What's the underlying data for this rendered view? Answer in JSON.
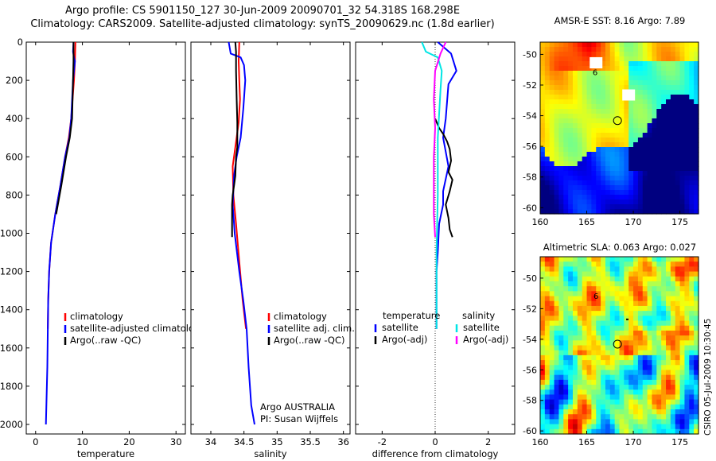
{
  "titles": {
    "line1": "Argo profile: CS 5901150_127 30-Jun-2009 20090701_32 54.318S 168.298E",
    "line2": "Climatology: CARS2009. Satellite-adjusted climatology: synTS_20090629.nc (1.8d earlier)"
  },
  "credit": "CSIRO 05-Jul-2009 10:30:45",
  "colors": {
    "climatology": "#ff0000",
    "satellite": "#0000ff",
    "argo": "#000000",
    "salinity_satellite": "#00e5e5",
    "salinity_argo": "#ff00ff"
  },
  "chart_data": [
    {
      "type": "line",
      "id": "temperature",
      "xlabel": "temperature",
      "ylabel": "",
      "xlim": [
        -2,
        32
      ],
      "ylim": [
        2050,
        0
      ],
      "xticks": [
        0,
        10,
        20,
        30
      ],
      "yticks": [
        0,
        200,
        400,
        600,
        800,
        1000,
        1200,
        1400,
        1600,
        1800,
        2000
      ],
      "legend": [
        "climatology",
        "satellite-adjusted climatology",
        "Argo(..raw -QC)"
      ],
      "legend_position": "lower-right",
      "series": [
        {
          "name": "climatology",
          "color": "#ff0000",
          "x": [
            8.5,
            8.4,
            8.2,
            7.9,
            7.6,
            7.1,
            6.3,
            5.3,
            4.2,
            3.3,
            2.9,
            2.7,
            2.6
          ],
          "y": [
            0,
            100,
            200,
            300,
            400,
            500,
            600,
            750,
            900,
            1050,
            1200,
            1350,
            1500
          ]
        },
        {
          "name": "satellite-adjusted climatology",
          "color": "#0000ff",
          "x": [
            8.1,
            8.0,
            8.2,
            8.4,
            8.0,
            7.6,
            7.2,
            6.3,
            5.3,
            4.2,
            3.3,
            2.9,
            2.7,
            2.6,
            2.5,
            2.3,
            2.2
          ],
          "y": [
            0,
            50,
            80,
            100,
            200,
            400,
            500,
            600,
            750,
            900,
            1050,
            1200,
            1350,
            1500,
            1700,
            1900,
            2000
          ]
        },
        {
          "name": "Argo(..raw -QC)",
          "color": "#000000",
          "x": [
            8.1,
            8.1,
            8.0,
            7.9,
            7.8,
            7.3,
            6.5,
            5.5,
            4.4
          ],
          "y": [
            0,
            100,
            200,
            300,
            400,
            500,
            600,
            750,
            900
          ]
        }
      ]
    },
    {
      "type": "line",
      "id": "salinity",
      "xlabel": "salinity",
      "xlim": [
        33.7,
        36.1
      ],
      "ylim": [
        2050,
        0
      ],
      "xticks": [
        34,
        34.5,
        35,
        35.5,
        36
      ],
      "yticks": [
        0,
        200,
        400,
        600,
        800,
        1000,
        1200,
        1400,
        1600,
        1800,
        2000
      ],
      "legend": [
        "climatology",
        "satellite adj. clim.",
        "Argo(..raw -QC)"
      ],
      "legend_position": "lower-right",
      "annotation": [
        "Argo AUSTRALIA",
        "PI: Susan Wijffels"
      ],
      "series": [
        {
          "name": "climatology",
          "color": "#ff0000",
          "x": [
            34.43,
            34.42,
            34.43,
            34.44,
            34.42,
            34.37,
            34.33,
            34.34,
            34.38,
            34.43,
            34.48,
            34.53
          ],
          "y": [
            0,
            100,
            200,
            300,
            420,
            550,
            650,
            800,
            950,
            1150,
            1350,
            1500
          ]
        },
        {
          "name": "satellite adj. clim.",
          "color": "#0000ff",
          "x": [
            34.27,
            34.3,
            34.45,
            34.5,
            34.52,
            34.49,
            34.45,
            34.39,
            34.35,
            34.33,
            34.36,
            34.43,
            34.49,
            34.54,
            34.57,
            34.61,
            34.66
          ],
          "y": [
            0,
            60,
            80,
            120,
            200,
            350,
            500,
            600,
            700,
            850,
            1000,
            1200,
            1350,
            1500,
            1700,
            1900,
            2000
          ]
        },
        {
          "name": "Argo(..raw -QC)",
          "color": "#000000",
          "x": [
            34.37,
            34.38,
            34.38,
            34.39,
            34.4,
            34.4,
            34.38,
            34.37,
            34.35,
            34.33,
            34.32,
            34.32,
            34.32
          ],
          "y": [
            0,
            50,
            150,
            300,
            420,
            550,
            600,
            700,
            750,
            800,
            850,
            900,
            1020
          ]
        }
      ]
    },
    {
      "type": "line",
      "id": "difference",
      "xlabel": "difference from climatology",
      "xlim": [
        -3,
        3
      ],
      "ylim": [
        2050,
        0
      ],
      "xticks": [
        -2,
        0,
        2
      ],
      "yticks": [
        0,
        200,
        400,
        600,
        800,
        1000,
        1200,
        1400,
        1600,
        1800,
        2000
      ],
      "legend_left_heading": "temperature",
      "legend_right_heading": "salinity",
      "legend": [
        "satellite",
        "Argo(-adj)",
        "satellite",
        "Argo(-adj)"
      ],
      "legend_position": "lower-center",
      "series": [
        {
          "name": "satellite",
          "group": "temperature",
          "color": "#0000ff",
          "x": [
            0.1,
            0.6,
            0.8,
            0.5,
            0.4,
            0.3,
            0.5,
            0.3,
            0.3,
            0.15,
            0.1,
            0.05,
            0.05,
            0.05,
            0.05
          ],
          "y": [
            0,
            60,
            150,
            220,
            400,
            500,
            650,
            780,
            850,
            950,
            1100,
            1200,
            1300,
            1400,
            1500
          ]
        },
        {
          "name": "Argo(-adj)",
          "group": "temperature",
          "color": "#000000",
          "x": [
            0.0,
            0.15,
            0.3,
            0.45,
            0.55,
            0.6,
            0.5,
            0.65,
            0.55,
            0.4,
            0.5,
            0.55,
            0.65
          ],
          "y": [
            400,
            450,
            480,
            520,
            560,
            620,
            680,
            720,
            780,
            850,
            920,
            980,
            1020
          ]
        },
        {
          "name": "satellite",
          "group": "salinity",
          "color": "#00e5e5",
          "x": [
            -0.5,
            -0.35,
            0.1,
            0.25,
            0.2,
            0.1,
            0.1,
            0.05,
            0.05,
            0.05
          ],
          "y": [
            0,
            50,
            80,
            150,
            250,
            500,
            800,
            1100,
            1300,
            1500
          ]
        },
        {
          "name": "Argo(-adj)",
          "group": "salinity",
          "color": "#ff00ff",
          "x": [
            0.4,
            0.2,
            0.0,
            -0.05,
            0.0,
            -0.05,
            -0.05,
            -0.05,
            0.0
          ],
          "y": [
            0,
            60,
            150,
            300,
            450,
            600,
            750,
            900,
            1020
          ]
        }
      ]
    },
    {
      "type": "heatmap",
      "id": "sst-map",
      "title": "AMSR-E SST: 8.16 Argo: 7.89",
      "xlim": [
        160,
        177
      ],
      "ylim": [
        -60.4,
        -49.2
      ],
      "xticks": [
        160,
        165,
        170,
        175
      ],
      "yticks": [
        -50,
        -52,
        -54,
        -56,
        -58,
        -60
      ],
      "markers": [
        {
          "kind": "circle",
          "lon": 168.3,
          "lat": -54.32
        },
        {
          "kind": "label",
          "text": "6",
          "lon": 165.9,
          "lat": -51.2
        },
        {
          "kind": "missing-data",
          "lon": 166.0,
          "lat": -50.6
        },
        {
          "kind": "missing-data",
          "lon": 169.5,
          "lat": -52.7
        }
      ]
    },
    {
      "type": "heatmap",
      "id": "sla-map",
      "title": "Altimetric SLA: 0.063 Argo: 0.027",
      "xlim": [
        160,
        177
      ],
      "ylim": [
        -60.2,
        -48.6
      ],
      "xticks": [
        160,
        165,
        170,
        175
      ],
      "yticks": [
        -50,
        -52,
        -54,
        -56,
        -58,
        -60
      ],
      "markers": [
        {
          "kind": "circle",
          "lon": 168.3,
          "lat": -54.32
        },
        {
          "kind": "label",
          "text": "6",
          "lon": 166.0,
          "lat": -51.2
        },
        {
          "kind": "dot",
          "lon": 169.4,
          "lat": -52.7
        }
      ]
    }
  ]
}
